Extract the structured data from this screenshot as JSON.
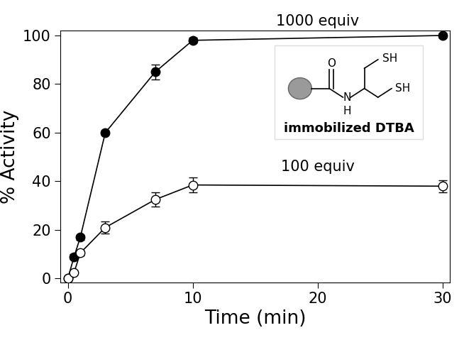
{
  "chart_data": {
    "type": "line",
    "x_label": "Time (min)",
    "y_label": "% Activity",
    "xlim": [
      -0.6,
      30.6
    ],
    "ylim": [
      -1.5,
      102
    ],
    "xticks": [
      0,
      10,
      20,
      30
    ],
    "yticks": [
      0,
      20,
      40,
      60,
      80,
      100
    ],
    "grid": false,
    "series": [
      {
        "name": "1000 equiv",
        "color": "#000000",
        "marker": "o",
        "line_style": "solid",
        "x": [
          0,
          0.5,
          1,
          3,
          7,
          10,
          30
        ],
        "values": [
          0,
          9,
          17,
          60,
          85,
          98,
          100
        ],
        "errors": [
          0.8,
          1,
          1,
          1,
          3,
          1,
          1
        ]
      },
      {
        "name": "100 equiv",
        "color": "#ffffff",
        "marker": "o",
        "line_style": "solid",
        "x": [
          0,
          0.5,
          1,
          3,
          7,
          10,
          30
        ],
        "values": [
          0,
          2.5,
          10.5,
          21,
          32.5,
          38.5,
          38
        ],
        "errors": [
          0.5,
          0.5,
          1,
          2.5,
          3,
          3,
          2.5
        ]
      }
    ],
    "inset": {
      "label": "immobilized DTBA",
      "atoms": [
        "O",
        "N",
        "H",
        "SH",
        "SH"
      ]
    }
  }
}
